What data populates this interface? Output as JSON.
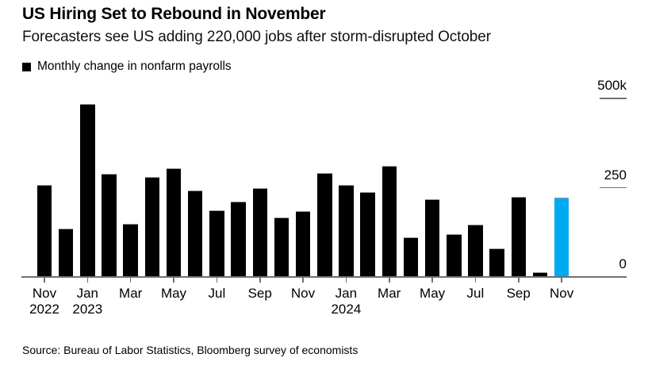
{
  "header": {
    "title": "US Hiring Set to Rebound in November",
    "subtitle": "Forecasters see US adding 220,000 jobs after storm-disrupted October"
  },
  "legend": {
    "label": "Monthly change in nonfarm payrolls",
    "marker_color": "#000000"
  },
  "source": "Source: Bureau of Labor Statistics, Bloomberg survey of economists",
  "chart_data": {
    "type": "bar",
    "title": "US Hiring Set to Rebound in November",
    "series_label": "Monthly change in nonfarm payrolls",
    "unit": "thousands of jobs (k)",
    "x": [
      "Nov 2022",
      "Dec 2022",
      "Jan 2023",
      "Feb 2023",
      "Mar 2023",
      "Apr 2023",
      "May 2023",
      "Jun 2023",
      "Jul 2023",
      "Aug 2023",
      "Sep 2023",
      "Oct 2023",
      "Nov 2023",
      "Dec 2023",
      "Jan 2024",
      "Feb 2024",
      "Mar 2024",
      "Apr 2024",
      "May 2024",
      "Jun 2024",
      "Jul 2024",
      "Aug 2024",
      "Sep 2024",
      "Oct 2024",
      "Nov 2024"
    ],
    "values": [
      257,
      133,
      482,
      287,
      146,
      278,
      303,
      240,
      184,
      210,
      246,
      165,
      182,
      290,
      256,
      236,
      310,
      108,
      216,
      118,
      144,
      78,
      223,
      12,
      220
    ],
    "bar_color": "#000000",
    "highlight_index": 24,
    "highlight_color": "#00aaf2",
    "ylim": [
      0,
      500
    ],
    "yticks": [
      {
        "value": 0,
        "label": "0",
        "underline": false
      },
      {
        "value": 250,
        "label": "250",
        "underline": true
      },
      {
        "value": 500,
        "label": "500k",
        "underline": true
      }
    ],
    "xticks": [
      {
        "index": 0,
        "line1": "Nov",
        "line2": "2022"
      },
      {
        "index": 2,
        "line1": "Jan",
        "line2": "2023"
      },
      {
        "index": 4,
        "line1": "Mar",
        "line2": ""
      },
      {
        "index": 6,
        "line1": "May",
        "line2": ""
      },
      {
        "index": 8,
        "line1": "Jul",
        "line2": ""
      },
      {
        "index": 10,
        "line1": "Sep",
        "line2": ""
      },
      {
        "index": 12,
        "line1": "Nov",
        "line2": ""
      },
      {
        "index": 14,
        "line1": "Jan",
        "line2": "2024"
      },
      {
        "index": 16,
        "line1": "Mar",
        "line2": ""
      },
      {
        "index": 18,
        "line1": "May",
        "line2": ""
      },
      {
        "index": 20,
        "line1": "Jul",
        "line2": ""
      },
      {
        "index": 22,
        "line1": "Sep",
        "line2": ""
      },
      {
        "index": 24,
        "line1": "Nov",
        "line2": ""
      }
    ],
    "legend_position": "top-left",
    "grid": false,
    "yaxis_side": "right"
  }
}
